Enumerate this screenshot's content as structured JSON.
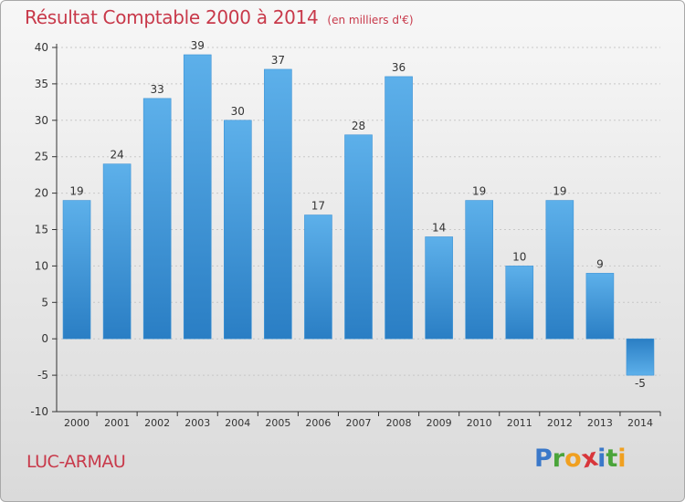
{
  "title": "Résultat Comptable 2000 à 2014",
  "unit_note": "(en milliers d'€)",
  "city": "LUC-ARMAU",
  "logo": {
    "letters": [
      {
        "ch": "P",
        "color": "#3a78c9"
      },
      {
        "ch": "r",
        "color": "#4aa43a"
      },
      {
        "ch": "o",
        "color": "#f0a020"
      },
      {
        "ch": "x",
        "color": "#d8363b"
      },
      {
        "ch": "i",
        "color": "#3a78c9"
      },
      {
        "ch": "t",
        "color": "#4aa43a"
      },
      {
        "ch": "i",
        "color": "#f0a020"
      }
    ]
  },
  "colors": {
    "title": "#c8394a",
    "bar_light": "#5db0ea",
    "bar_dark": "#2a7ec4",
    "axis": "#333333",
    "grid": "#c8c8c8"
  },
  "chart_data": {
    "type": "bar",
    "title": "Résultat Comptable 2000 à 2014",
    "xlabel": "",
    "ylabel": "",
    "categories": [
      "2000",
      "2001",
      "2002",
      "2003",
      "2004",
      "2005",
      "2006",
      "2007",
      "2008",
      "2009",
      "2010",
      "2011",
      "2012",
      "2013",
      "2014"
    ],
    "values": [
      19,
      24,
      33,
      39,
      30,
      37,
      17,
      28,
      36,
      14,
      19,
      10,
      19,
      9,
      -5
    ],
    "labels": [
      "19",
      "24",
      "33",
      "39",
      "30",
      "37",
      "17",
      "28",
      "36",
      "14",
      "19",
      "10",
      "19",
      "9",
      "-5"
    ],
    "ylim": [
      -10,
      40
    ],
    "yticks": [
      -10,
      -5,
      0,
      5,
      10,
      15,
      20,
      25,
      30,
      35,
      40
    ],
    "grid": true,
    "legend": "none"
  }
}
